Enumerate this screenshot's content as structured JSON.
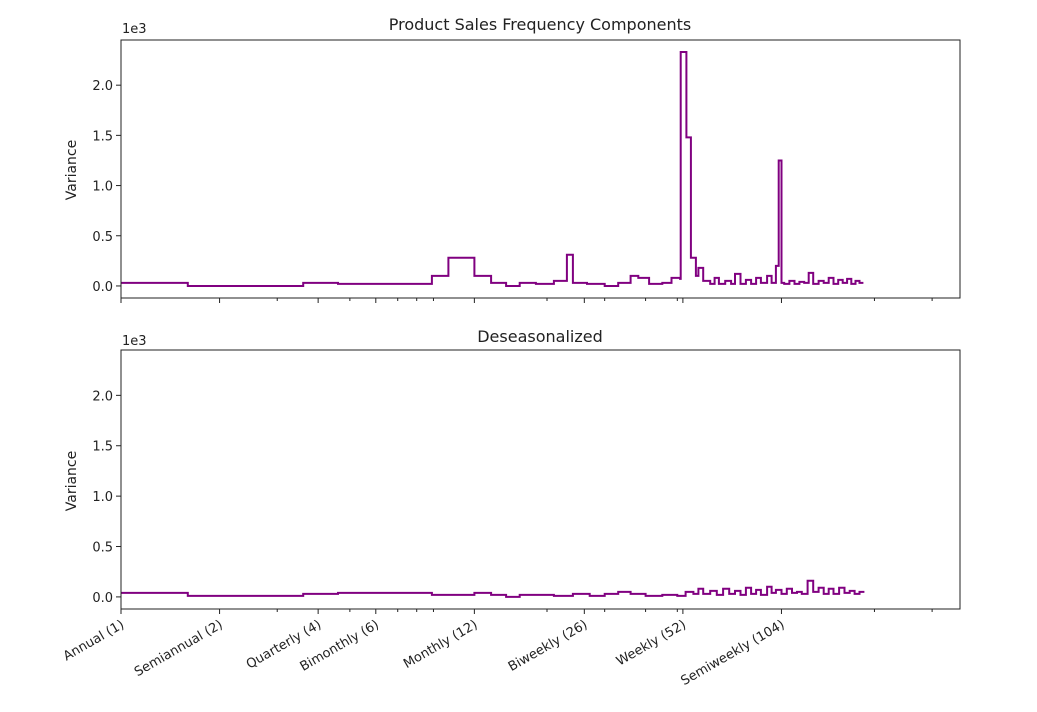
{
  "colors": {
    "line": "#800080",
    "axis": "#222222"
  },
  "x_tick_labels": [
    "Annual (1)",
    "Semiannual (2)",
    "Quarterly (4)",
    "Bimonthly (6)",
    "Monthly (12)",
    "Biweekly (26)",
    "Weekly (52)",
    "Semiweekly (104)"
  ],
  "chart_data": [
    {
      "type": "line",
      "title": "Product Sales Frequency Components",
      "ylabel": "Variance",
      "xlabel": "",
      "y_offset_label": "1e3",
      "ylim": [
        -0.12,
        2.45
      ],
      "yticks": [
        0.0,
        0.5,
        1.0,
        1.5,
        2.0
      ],
      "ytick_labels": [
        "0.0",
        "0.5",
        "1.0",
        "1.5",
        "2.0"
      ],
      "xscale": "log",
      "xlim": [
        1,
        365
      ],
      "xticks": [
        1,
        2,
        4,
        6,
        12,
        26,
        52,
        104
      ],
      "drawstyle": "steps",
      "x": [
        1,
        1.6,
        2.4,
        3.6,
        4.6,
        7.5,
        8.9,
        10,
        12,
        13.5,
        15,
        16.5,
        18.5,
        21,
        23,
        24,
        26.5,
        30,
        33,
        36,
        38,
        41,
        45,
        48,
        51,
        51.2,
        53.3,
        53.5,
        55,
        57,
        58,
        60,
        63,
        65,
        67,
        70,
        73,
        75,
        78,
        81,
        84,
        87,
        90,
        94,
        97,
        100,
        102,
        104,
        106,
        110,
        114,
        118,
        122,
        126,
        130,
        135,
        140,
        145,
        150,
        155,
        160,
        165,
        170,
        175,
        180,
        185
      ],
      "y": [
        0.03,
        0.0,
        0.0,
        0.03,
        0.02,
        0.02,
        0.1,
        0.28,
        0.1,
        0.03,
        0.0,
        0.03,
        0.02,
        0.05,
        0.31,
        0.03,
        0.02,
        0.0,
        0.03,
        0.1,
        0.08,
        0.02,
        0.03,
        0.08,
        0.07,
        2.33,
        1.48,
        1.48,
        0.28,
        0.1,
        0.18,
        0.05,
        0.02,
        0.08,
        0.02,
        0.05,
        0.02,
        0.12,
        0.02,
        0.06,
        0.02,
        0.08,
        0.03,
        0.1,
        0.03,
        0.2,
        1.25,
        0.03,
        0.02,
        0.05,
        0.02,
        0.04,
        0.03,
        0.13,
        0.02,
        0.05,
        0.03,
        0.08,
        0.02,
        0.06,
        0.03,
        0.07,
        0.02,
        0.05,
        0.03,
        0.03
      ]
    },
    {
      "type": "line",
      "title": "Deseasonalized",
      "ylabel": "Variance",
      "xlabel": "",
      "y_offset_label": "1e3",
      "ylim": [
        -0.12,
        2.45
      ],
      "yticks": [
        0.0,
        0.5,
        1.0,
        1.5,
        2.0
      ],
      "ytick_labels": [
        "0.0",
        "0.5",
        "1.0",
        "1.5",
        "2.0"
      ],
      "xscale": "log",
      "xlim": [
        1,
        365
      ],
      "xticks": [
        1,
        2,
        4,
        6,
        12,
        26,
        52,
        104
      ],
      "drawstyle": "steps",
      "x": [
        1,
        1.6,
        2.4,
        3.6,
        4.6,
        7.5,
        8.9,
        10,
        12,
        13.5,
        15,
        16.5,
        18.5,
        21,
        24,
        27,
        30,
        33,
        36,
        40,
        45,
        50,
        53,
        56,
        58,
        60,
        63,
        66,
        69,
        72,
        75,
        78,
        81,
        84,
        87,
        90,
        94,
        97,
        100,
        104,
        108,
        112,
        116,
        120,
        125,
        130,
        135,
        140,
        145,
        150,
        156,
        162,
        168,
        174,
        180,
        185
      ],
      "y": [
        0.04,
        0.01,
        0.01,
        0.03,
        0.04,
        0.04,
        0.02,
        0.02,
        0.04,
        0.02,
        0.0,
        0.02,
        0.02,
        0.01,
        0.03,
        0.01,
        0.03,
        0.05,
        0.03,
        0.01,
        0.02,
        0.01,
        0.05,
        0.03,
        0.08,
        0.03,
        0.06,
        0.02,
        0.08,
        0.03,
        0.06,
        0.02,
        0.09,
        0.03,
        0.07,
        0.02,
        0.1,
        0.04,
        0.07,
        0.03,
        0.08,
        0.04,
        0.05,
        0.03,
        0.16,
        0.05,
        0.09,
        0.03,
        0.08,
        0.03,
        0.09,
        0.04,
        0.06,
        0.03,
        0.05,
        0.04
      ]
    }
  ]
}
